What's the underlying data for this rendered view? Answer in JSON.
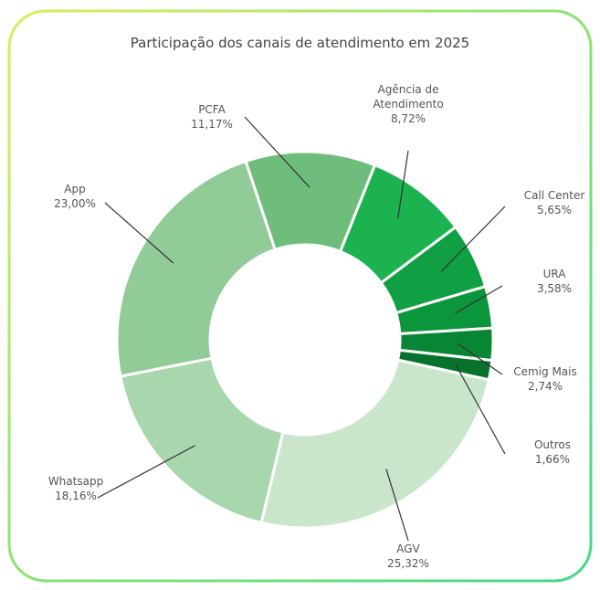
{
  "chart_data": {
    "type": "donut",
    "title": "Participação dos canais de atendimento em 2025",
    "categories": [
      "PCFA",
      "Agência de Atendimento",
      "Call Center",
      "URA",
      "Cemig Mais",
      "Outros",
      "AGV",
      "Whatsapp",
      "App"
    ],
    "values": [
      11.17,
      8.72,
      5.65,
      3.58,
      2.74,
      1.66,
      25.32,
      18.16,
      23.0
    ],
    "value_labels": [
      "11,17%",
      "8,72%",
      "5,65%",
      "3,58%",
      "2,74%",
      "1,66%",
      "25,32%",
      "18,16%",
      "23,00%"
    ],
    "colors": [
      "#6fbd7c",
      "#1cb24f",
      "#10a043",
      "#0b963c",
      "#098633",
      "#06722b",
      "#c9e6cb",
      "#a9d7ad",
      "#91cb98"
    ]
  }
}
